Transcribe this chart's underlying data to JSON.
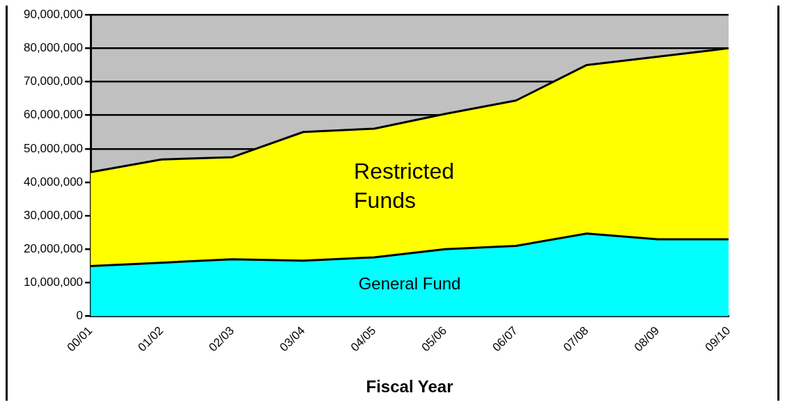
{
  "chart_data": {
    "type": "area",
    "stacked": true,
    "xlabel": "Fiscal Year",
    "categories": [
      "00/01",
      "01/02",
      "02/03",
      "03/04",
      "04/05",
      "05/06",
      "06/07",
      "07/08",
      "08/09",
      "09/10"
    ],
    "series": [
      {
        "name": "General Fund",
        "color": "#00ffff",
        "values": [
          15000000,
          16000000,
          17000000,
          16600000,
          17600000,
          20000000,
          21000000,
          24700000,
          23000000,
          23000000
        ]
      },
      {
        "name": "Restricted Funds",
        "color": "#ffff00",
        "values": [
          28000000,
          30800000,
          30500000,
          38400000,
          38400000,
          40400000,
          43400000,
          50300000,
          54500000,
          57000000
        ]
      }
    ],
    "ylim": [
      0,
      90000000
    ],
    "yticks": [
      {
        "value": 0,
        "label": "0"
      },
      {
        "value": 10000000,
        "label": "10,000,000"
      },
      {
        "value": 20000000,
        "label": "20,000,000"
      },
      {
        "value": 30000000,
        "label": "30,000,000"
      },
      {
        "value": 40000000,
        "label": "40,000,000"
      },
      {
        "value": 50000000,
        "label": "50,000,000"
      },
      {
        "value": 60000000,
        "label": "60,000,000"
      },
      {
        "value": 70000000,
        "label": "70,000,000"
      },
      {
        "value": 80000000,
        "label": "80,000,000"
      },
      {
        "value": 90000000,
        "label": "90,000,000"
      }
    ],
    "grid": "y",
    "legend": false
  }
}
